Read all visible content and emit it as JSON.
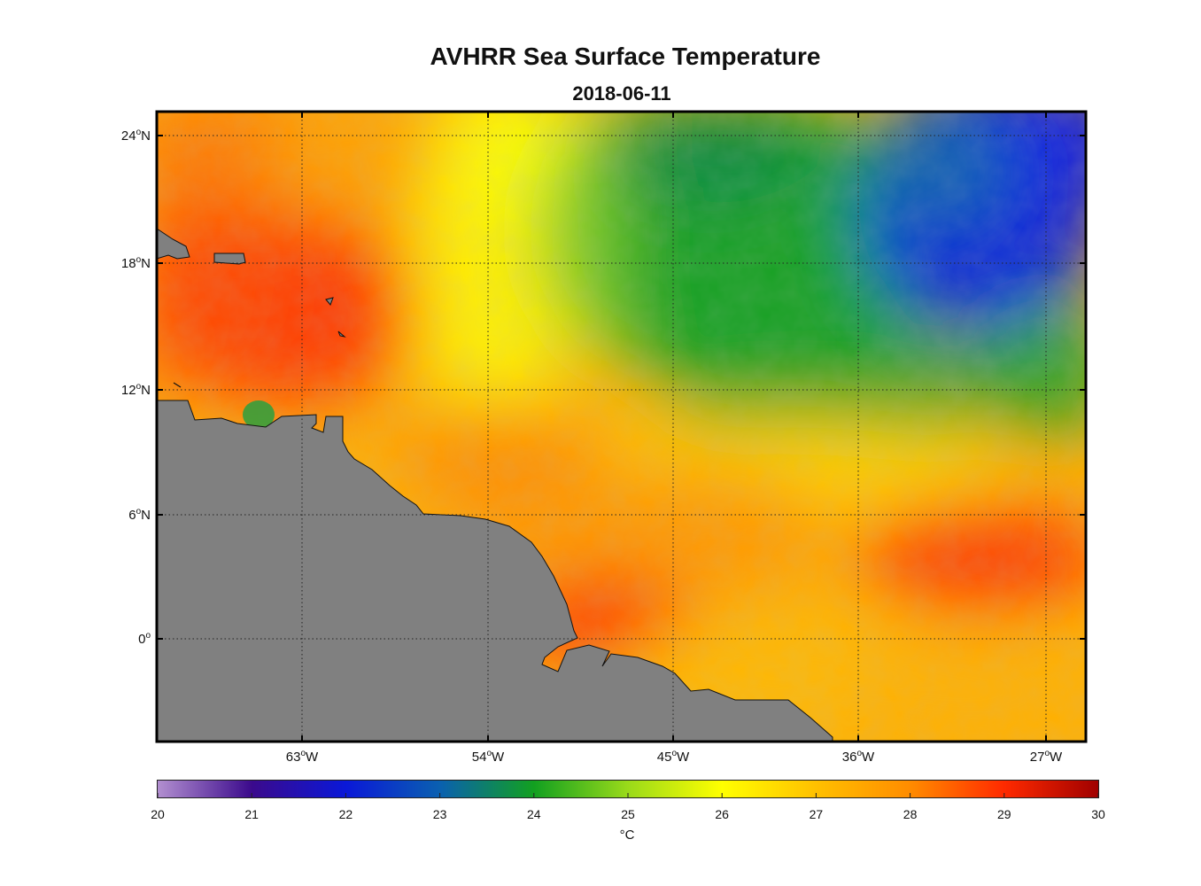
{
  "title": "AVHRR Sea Surface Temperature",
  "subtitle": "2018-06-11",
  "axes": {
    "lat_ticks": [
      {
        "deg": "24",
        "hem": "N"
      },
      {
        "deg": "18",
        "hem": "N"
      },
      {
        "deg": "12",
        "hem": "N"
      },
      {
        "deg": "6",
        "hem": "N"
      },
      {
        "deg": "0",
        "hem": ""
      }
    ],
    "lon_ticks": [
      {
        "deg": "63",
        "hem": "W"
      },
      {
        "deg": "54",
        "hem": "W"
      },
      {
        "deg": "45",
        "hem": "W"
      },
      {
        "deg": "36",
        "hem": "W"
      },
      {
        "deg": "27",
        "hem": "W"
      }
    ],
    "lat_range": [
      -4.6,
      25
    ],
    "lon_range": [
      -70.2,
      -25.2
    ],
    "grid": "dotted"
  },
  "colorbar": {
    "min": 20,
    "max": 30,
    "ticks": [
      "20",
      "21",
      "22",
      "23",
      "24",
      "25",
      "26",
      "27",
      "28",
      "29",
      "30"
    ],
    "unit": "°C",
    "stops": [
      "#b28fd0",
      "#3b0a8c",
      "#0a18d8",
      "#0a60b0",
      "#12a020",
      "#9ada1a",
      "#ffff00",
      "#ffc000",
      "#ff8c00",
      "#ff2a00",
      "#a00000"
    ]
  },
  "colors": {
    "land": "#808080",
    "coast": "#111111"
  }
}
